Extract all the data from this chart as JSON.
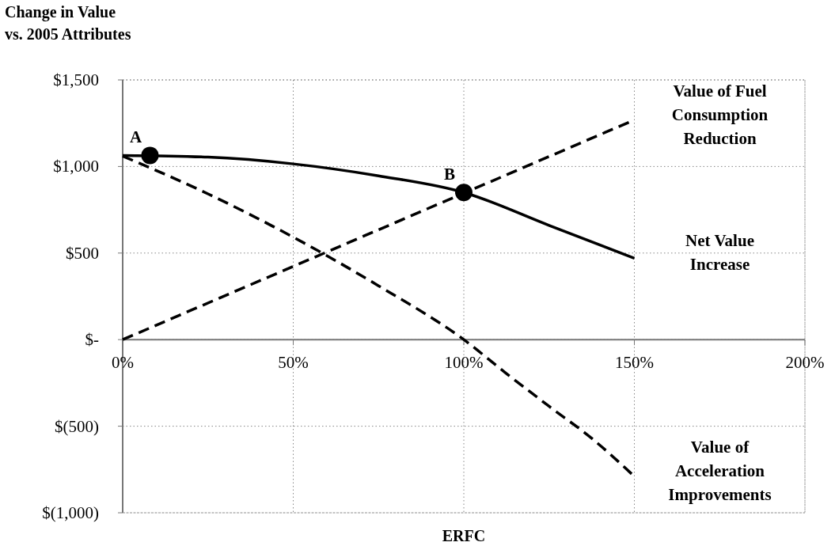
{
  "chart_data": {
    "type": "line",
    "ylabel": "Change in Value vs. 2005 Attributes",
    "xlabel": "ERFC",
    "xlim": [
      0,
      200
    ],
    "xticks": [
      {
        "value": 0,
        "label": "0%"
      },
      {
        "value": 50,
        "label": "50%"
      },
      {
        "value": 100,
        "label": "100%"
      },
      {
        "value": 150,
        "label": "150%"
      },
      {
        "value": 200,
        "label": "200%"
      }
    ],
    "ylim": [
      -1000,
      1500
    ],
    "yticks": [
      {
        "value": 1500,
        "label": "$1,500"
      },
      {
        "value": 1000,
        "label": "$1,000"
      },
      {
        "value": 500,
        "label": "$500"
      },
      {
        "value": 0,
        "label": "$-"
      },
      {
        "value": -500,
        "label": "$(500)"
      },
      {
        "value": -1000,
        "label": "$(1,000)"
      }
    ],
    "grid": true,
    "marker": "none",
    "series": [
      {
        "name": "Value of Fuel Consumption Reduction",
        "color": "#000000",
        "line_style": "dashed",
        "x": [
          0,
          150
        ],
        "values": [
          0,
          1269
        ]
      },
      {
        "name": "Net Value Increase",
        "color": "#000000",
        "line_style": "solid",
        "x": [
          0,
          25,
          50,
          75,
          100,
          125,
          150
        ],
        "values": [
          1064,
          1054,
          1015,
          946,
          850,
          660,
          470
        ]
      },
      {
        "name": "Value of Acceleration Improvements",
        "color": "#000000",
        "line_style": "dashed",
        "x": [
          0,
          25,
          50,
          75,
          100,
          112.5,
          125,
          137.5,
          150
        ],
        "values": [
          1060,
          842,
          592,
          311,
          0,
          -196,
          -385,
          -570,
          -790
        ]
      },
      {
        "type": "scatter",
        "marker": "circle",
        "color": "#000000",
        "x": [
          8,
          100
        ],
        "values": [
          1064,
          850
        ]
      }
    ],
    "annotations": [
      {
        "text": "A",
        "x": 8,
        "y": 1064
      },
      {
        "text": "B",
        "x": 100,
        "y": 850
      }
    ]
  }
}
